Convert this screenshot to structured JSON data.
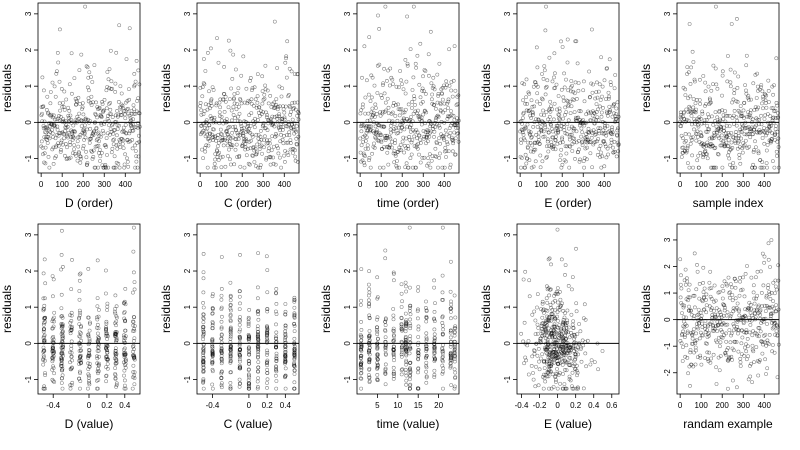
{
  "chart_data": [
    {
      "type": "scatter",
      "xlabel": "D (order)",
      "ylabel": "residuals",
      "xlim": [
        -15,
        470
      ],
      "ylim": [
        -1.4,
        3.3
      ],
      "xticks": [
        0,
        100,
        200,
        300,
        400
      ],
      "yticks": [
        -1,
        0,
        1,
        2,
        3
      ],
      "hline": 0,
      "n_points": 470,
      "seed": 1,
      "x_kind": "index",
      "y_kind": "skew",
      "y_params": {
        "sd": 0.6,
        "skew": 0.5,
        "min": -1.25,
        "max": 3.2
      }
    },
    {
      "type": "scatter",
      "xlabel": "C (order)",
      "ylabel": "residuals",
      "xlim": [
        -15,
        470
      ],
      "ylim": [
        -1.4,
        3.3
      ],
      "xticks": [
        0,
        100,
        200,
        300,
        400
      ],
      "yticks": [
        -1,
        0,
        1,
        2,
        3
      ],
      "hline": 0,
      "n_points": 470,
      "seed": 2,
      "x_kind": "index",
      "y_kind": "skew",
      "y_params": {
        "sd": 0.6,
        "skew": 0.5,
        "min": -1.25,
        "max": 3.2
      }
    },
    {
      "type": "scatter",
      "xlabel": "time (order)",
      "ylabel": "residuals",
      "xlim": [
        -15,
        470
      ],
      "ylim": [
        -1.4,
        3.3
      ],
      "xticks": [
        0,
        100,
        200,
        300,
        400
      ],
      "yticks": [
        -1,
        0,
        1,
        2,
        3
      ],
      "hline": 0,
      "n_points": 470,
      "seed": 3,
      "x_kind": "index",
      "y_kind": "skew",
      "y_params": {
        "sd": 0.6,
        "skew": 0.5,
        "min": -1.25,
        "max": 3.2
      }
    },
    {
      "type": "scatter",
      "xlabel": "E (order)",
      "ylabel": "residuals",
      "xlim": [
        -15,
        470
      ],
      "ylim": [
        -1.4,
        3.3
      ],
      "xticks": [
        0,
        100,
        200,
        300,
        400
      ],
      "yticks": [
        -1,
        0,
        1,
        2,
        3
      ],
      "hline": 0,
      "n_points": 470,
      "seed": 4,
      "x_kind": "index",
      "y_kind": "skew",
      "y_params": {
        "sd": 0.6,
        "skew": 0.5,
        "min": -1.25,
        "max": 3.2
      }
    },
    {
      "type": "scatter",
      "xlabel": "sample index",
      "ylabel": "residuals",
      "xlim": [
        -15,
        470
      ],
      "ylim": [
        -1.4,
        3.3
      ],
      "xticks": [
        0,
        100,
        200,
        300,
        400
      ],
      "yticks": [
        -1,
        0,
        1,
        2,
        3
      ],
      "hline": 0,
      "n_points": 470,
      "seed": 5,
      "x_kind": "index",
      "y_kind": "skew",
      "y_params": {
        "sd": 0.6,
        "skew": 0.5,
        "min": -1.25,
        "max": 3.2
      }
    },
    {
      "type": "scatter",
      "xlabel": "D (value)",
      "ylabel": "residuals",
      "xlim": [
        -0.57,
        0.57
      ],
      "ylim": [
        -1.4,
        3.3
      ],
      "xticks": [
        -0.4,
        0,
        0.2,
        0.4
      ],
      "yticks": [
        -1,
        0,
        1,
        2,
        3
      ],
      "hline": 0,
      "n_points": 470,
      "seed": 6,
      "x_kind": "discrete",
      "x_params": {
        "levels": [
          -0.5,
          -0.4,
          -0.3,
          -0.2,
          -0.1,
          0.0,
          0.1,
          0.2,
          0.3,
          0.4,
          0.5
        ],
        "jitter": 0.012
      },
      "y_kind": "skew",
      "y_params": {
        "sd": 0.6,
        "skew": 0.5,
        "min": -1.25,
        "max": 3.2
      }
    },
    {
      "type": "scatter",
      "xlabel": "C (value)",
      "ylabel": "residuals",
      "xlim": [
        -0.57,
        0.55
      ],
      "ylim": [
        -1.4,
        3.3
      ],
      "xticks": [
        -0.4,
        0,
        0.2,
        0.4
      ],
      "yticks": [
        -1,
        0,
        1,
        2,
        3
      ],
      "hline": 0,
      "n_points": 470,
      "seed": 7,
      "x_kind": "discrete",
      "x_params": {
        "levels": [
          -0.5,
          -0.4,
          -0.3,
          -0.2,
          -0.1,
          0.0,
          0.1,
          0.2,
          0.3,
          0.4,
          0.5
        ],
        "jitter": 0.004
      },
      "y_kind": "skew",
      "y_params": {
        "sd": 0.6,
        "skew": 0.5,
        "min": -1.25,
        "max": 3.2
      }
    },
    {
      "type": "scatter",
      "xlabel": "time (value)",
      "ylabel": "residuals",
      "xlim": [
        0,
        25
      ],
      "ylim": [
        -1.4,
        3.3
      ],
      "xticks": [
        5,
        10,
        15,
        20
      ],
      "yticks": [
        -1,
        0,
        1,
        2,
        3
      ],
      "hline": 0,
      "n_points": 470,
      "seed": 8,
      "x_kind": "discrete",
      "x_params": {
        "levels": [
          1,
          3,
          5,
          7,
          9,
          11,
          12,
          13,
          15,
          17,
          19,
          21,
          23,
          24
        ],
        "jitter": 0.12
      },
      "y_kind": "skew",
      "y_params": {
        "sd": 0.6,
        "skew": 0.5,
        "min": -1.25,
        "max": 3.2
      }
    },
    {
      "type": "scatter",
      "xlabel": "E (value)",
      "ylabel": "residuals",
      "xlim": [
        -0.45,
        0.68
      ],
      "ylim": [
        -1.4,
        3.3
      ],
      "xticks": [
        -0.4,
        -0.2,
        0,
        0.2,
        0.4,
        0.6
      ],
      "yticks": [
        -1,
        0,
        1,
        2,
        3
      ],
      "hline": 0,
      "n_points": 470,
      "seed": 9,
      "x_kind": "normal",
      "x_params": {
        "mean": 0.0,
        "sd": 0.15,
        "min": -0.42,
        "max": 0.64
      },
      "y_kind": "skew",
      "y_params": {
        "sd": 0.6,
        "skew": 0.5,
        "min": -1.25,
        "max": 3.2
      }
    },
    {
      "type": "scatter",
      "xlabel": "randam example",
      "ylabel": "residuals",
      "xlim": [
        -15,
        470
      ],
      "ylim": [
        -2.8,
        3.6
      ],
      "xticks": [
        0,
        100,
        200,
        300,
        400
      ],
      "yticks": [
        -2,
        -1,
        0,
        1,
        2,
        3
      ],
      "hline": 0,
      "n_points": 470,
      "seed": 10,
      "x_kind": "index",
      "y_kind": "normal",
      "y_params": {
        "sd": 1.0,
        "min": -2.6,
        "max": 3.4
      }
    }
  ]
}
